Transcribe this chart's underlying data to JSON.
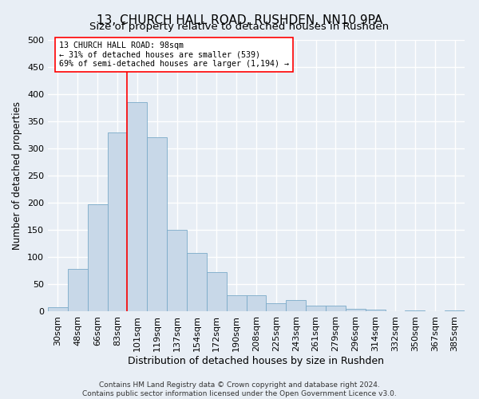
{
  "title": "13, CHURCH HALL ROAD, RUSHDEN, NN10 9PA",
  "subtitle": "Size of property relative to detached houses in Rushden",
  "xlabel": "Distribution of detached houses by size in Rushden",
  "ylabel": "Number of detached properties",
  "footnote1": "Contains HM Land Registry data © Crown copyright and database right 2024.",
  "footnote2": "Contains public sector information licensed under the Open Government Licence v3.0.",
  "bar_labels": [
    "30sqm",
    "48sqm",
    "66sqm",
    "83sqm",
    "101sqm",
    "119sqm",
    "137sqm",
    "154sqm",
    "172sqm",
    "190sqm",
    "208sqm",
    "225sqm",
    "243sqm",
    "261sqm",
    "279sqm",
    "296sqm",
    "314sqm",
    "332sqm",
    "350sqm",
    "367sqm",
    "385sqm"
  ],
  "bar_values": [
    8,
    78,
    197,
    330,
    385,
    320,
    150,
    107,
    72,
    29,
    29,
    14,
    20,
    10,
    10,
    5,
    3,
    0,
    1,
    0,
    2
  ],
  "bar_color": "#c8d8e8",
  "bar_edge_color": "#7aaac8",
  "ylim": [
    0,
    500
  ],
  "yticks": [
    0,
    50,
    100,
    150,
    200,
    250,
    300,
    350,
    400,
    450,
    500
  ],
  "property_line_bar_index": 4,
  "property_label_line1": "13 CHURCH HALL ROAD: 98sqm",
  "property_label_line2": "← 31% of detached houses are smaller (539)",
  "property_label_line3": "69% of semi-detached houses are larger (1,194) →",
  "bg_color": "#e8eef5",
  "plot_bg_color": "#e8eef5",
  "grid_color": "#ffffff",
  "title_fontsize": 11,
  "xlabel_fontsize": 9,
  "ylabel_fontsize": 8.5,
  "tick_fontsize": 8,
  "footnote_fontsize": 6.5
}
